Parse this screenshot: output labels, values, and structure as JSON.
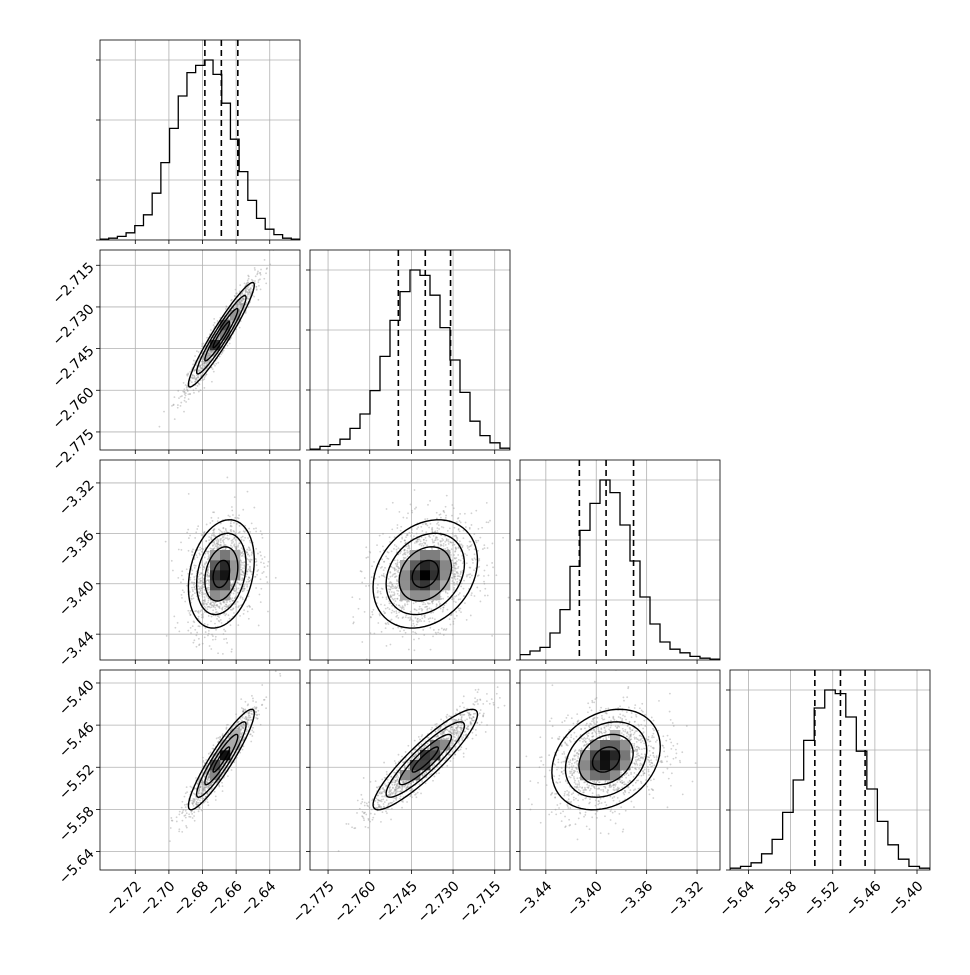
{
  "chart_data": {
    "type": "corner",
    "parameters": [
      {
        "ticks": [
          "−2.72",
          "−2.70",
          "−2.68",
          "−2.66",
          "−2.64"
        ],
        "ticks_values": [
          -2.72,
          -2.7,
          -2.68,
          -2.66,
          -2.64
        ],
        "range": [
          -2.741,
          -2.622
        ],
        "quantiles": [
          -2.6786,
          -2.6688,
          -2.659
        ]
      },
      {
        "ticks": [
          "−2.775",
          "−2.760",
          "−2.745",
          "−2.730",
          "−2.715"
        ],
        "ticks_values": [
          -2.775,
          -2.76,
          -2.745,
          -2.73,
          -2.715
        ],
        "range": [
          -2.7815,
          -2.7095
        ],
        "quantiles": [
          -2.7497,
          -2.74,
          -2.7309
        ]
      },
      {
        "ticks": [
          "−3.44",
          "−3.40",
          "−3.36",
          "−3.32"
        ],
        "ticks_values": [
          -3.44,
          -3.4,
          -3.36,
          -3.32
        ],
        "range": [
          -3.4605,
          -3.3018
        ],
        "quantiles": [
          -3.4134,
          -3.3922,
          -3.3704
        ]
      },
      {
        "ticks": [
          "−5.64",
          "−5.58",
          "−5.52",
          "−5.46",
          "−5.40"
        ],
        "ticks_values": [
          -5.64,
          -5.58,
          -5.52,
          -5.46,
          -5.4
        ],
        "range": [
          -5.6663,
          -5.3815
        ],
        "quantiles": [
          -5.5455,
          -5.509,
          -5.4739
        ]
      }
    ],
    "histograms": [
      [
        0.005,
        0.01,
        0.02,
        0.04,
        0.08,
        0.14,
        0.26,
        0.43,
        0.62,
        0.8,
        0.93,
        0.97,
        1.0,
        0.92,
        0.76,
        0.56,
        0.38,
        0.22,
        0.12,
        0.06,
        0.03,
        0.01,
        0.005
      ],
      [
        0.005,
        0.02,
        0.03,
        0.06,
        0.12,
        0.2,
        0.33,
        0.52,
        0.72,
        0.88,
        1.0,
        0.97,
        0.86,
        0.68,
        0.5,
        0.32,
        0.16,
        0.08,
        0.04,
        0.01
      ],
      [
        0.03,
        0.05,
        0.07,
        0.15,
        0.28,
        0.52,
        0.72,
        0.87,
        1.0,
        0.93,
        0.75,
        0.55,
        0.35,
        0.2,
        0.1,
        0.06,
        0.04,
        0.02,
        0.01,
        0.005
      ],
      [
        0.01,
        0.02,
        0.04,
        0.09,
        0.17,
        0.32,
        0.5,
        0.72,
        0.9,
        1.0,
        0.98,
        0.85,
        0.66,
        0.45,
        0.27,
        0.14,
        0.06,
        0.02,
        0.01
      ]
    ],
    "correlations": [
      [
        1.0,
        0.95,
        0.25,
        0.92
      ],
      [
        0.95,
        1.0,
        0.25,
        0.9
      ],
      [
        0.25,
        0.25,
        1.0,
        0.25
      ],
      [
        0.92,
        0.9,
        0.25,
        1.0
      ]
    ],
    "contour_levels_sigma": [
      0.5,
      1.0,
      1.5,
      2.0
    ],
    "grid": true,
    "colors": {
      "line": "#000000",
      "points": "#9a9a9a",
      "grid": "#b0b0b0",
      "density_dark": "#000000",
      "density_light": "#dddddd"
    }
  }
}
